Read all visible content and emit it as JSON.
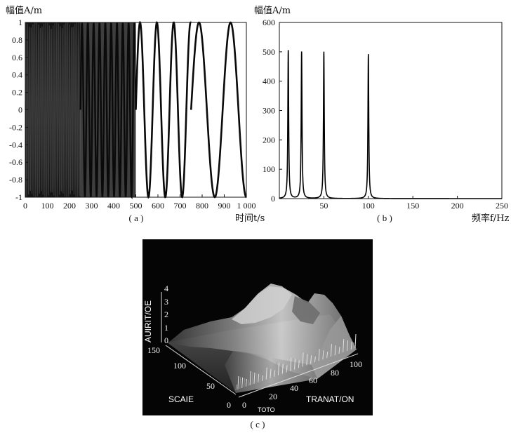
{
  "chart_data": [
    {
      "panel": "a",
      "type": "line",
      "caption": "( a )",
      "ylabel": "幅值A/m",
      "xlabel": "时间t/s",
      "xlim": [
        0,
        1000
      ],
      "ylim": [
        -1,
        1
      ],
      "x_ticks": [
        "0",
        "100",
        "200",
        "300",
        "400",
        "500",
        "600",
        "700",
        "800",
        "900",
        "1 000"
      ],
      "y_ticks": [
        "1",
        "0.8",
        "0.6",
        "0.4",
        "0.2",
        "0",
        "-0.2",
        "-0.4",
        "-0.6",
        "-0.8",
        "-1"
      ],
      "series": [
        {
          "segment_s": [
            0,
            250
          ],
          "frequency_hz": 100,
          "amplitude": 1
        },
        {
          "segment_s": [
            250,
            500
          ],
          "frequency_hz": 50,
          "amplitude": 1
        },
        {
          "segment_s": [
            500,
            750
          ],
          "frequency_hz": 25,
          "amplitude": 1
        },
        {
          "segment_s": [
            750,
            1000
          ],
          "frequency_hz": 10,
          "amplitude": 1
        }
      ]
    },
    {
      "panel": "b",
      "type": "line",
      "caption": "( b )",
      "ylabel": "幅值A/m",
      "xlabel": "频率f/Hz",
      "xlim": [
        0,
        250
      ],
      "ylim": [
        0,
        600
      ],
      "x_ticks": [
        "50",
        "100",
        "150",
        "200",
        "250"
      ],
      "y_ticks": [
        "600",
        "500",
        "400",
        "300",
        "200",
        "100",
        "0"
      ],
      "peaks": [
        {
          "x": 10,
          "y": 505
        },
        {
          "x": 25,
          "y": 500
        },
        {
          "x": 50,
          "y": 500
        },
        {
          "x": 100,
          "y": 492
        }
      ]
    },
    {
      "panel": "c",
      "type": "surface",
      "caption": "( c )",
      "zlabel": "AUIRIT/OE",
      "ylabel": "SCAIE",
      "xlabel": "TRANAT/ON",
      "xsub": "TOTO",
      "z_ticks": [
        "4",
        "3",
        "2",
        "1",
        "0"
      ],
      "y_ticks": [
        "150",
        "100",
        "50",
        "0"
      ],
      "x_ticks": [
        "0",
        "20",
        "40",
        "60",
        "80",
        "100"
      ]
    }
  ]
}
